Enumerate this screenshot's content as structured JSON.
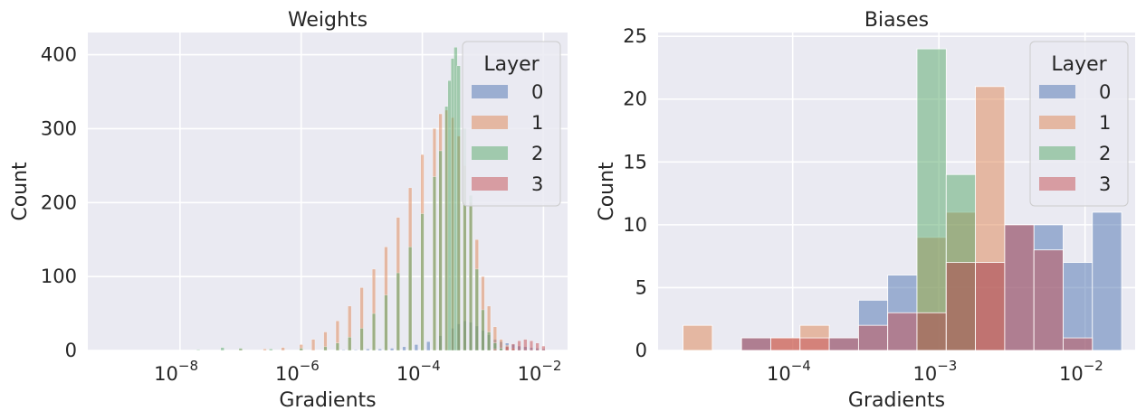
{
  "chart_data": [
    {
      "type": "bar",
      "subtype": "histogram",
      "title": "Weights",
      "xlabel": "Gradients",
      "ylabel": "Count",
      "xscale": "log",
      "xlim": [
        3e-10,
        0.025
      ],
      "ylim": [
        0,
        430
      ],
      "xticks": [
        {
          "value": 1e-08,
          "base": "10",
          "exp": "−8"
        },
        {
          "value": 1e-06,
          "base": "10",
          "exp": "−6"
        },
        {
          "value": 0.0001,
          "base": "10",
          "exp": "−4"
        },
        {
          "value": 0.01,
          "base": "10",
          "exp": "−2"
        }
      ],
      "yticks": [
        0,
        100,
        200,
        300,
        400
      ],
      "grid": true,
      "legend": {
        "title": "Layer",
        "placement": "top-right"
      },
      "bin_edges_log10": [
        -8.7,
        -2.0
      ],
      "series": [
        {
          "name": "0",
          "color": "#4c72b0",
          "points": [
            [
              -5.3,
              1
            ],
            [
              -5.1,
              1
            ],
            [
              -4.9,
              2
            ],
            [
              -4.7,
              2
            ],
            [
              -4.5,
              3
            ],
            [
              -4.3,
              5
            ],
            [
              -4.1,
              8
            ],
            [
              -3.9,
              12
            ],
            [
              -3.7,
              20
            ],
            [
              -3.5,
              30
            ],
            [
              -3.4,
              36
            ],
            [
              -3.3,
              40
            ],
            [
              -3.2,
              38
            ],
            [
              -3.1,
              33
            ],
            [
              -3.0,
              27
            ],
            [
              -2.9,
              21
            ],
            [
              -2.8,
              15
            ],
            [
              -2.7,
              12
            ],
            [
              -2.6,
              10
            ],
            [
              -2.5,
              8
            ],
            [
              -2.4,
              6
            ],
            [
              -2.3,
              5
            ],
            [
              -2.2,
              4
            ],
            [
              -2.1,
              3
            ],
            [
              -2.0,
              2
            ]
          ]
        },
        {
          "name": "1",
          "color": "#dd8452",
          "points": [
            [
              -7.0,
              2
            ],
            [
              -6.6,
              2
            ],
            [
              -6.3,
              4
            ],
            [
              -6.0,
              8
            ],
            [
              -5.8,
              15
            ],
            [
              -5.6,
              25
            ],
            [
              -5.4,
              40
            ],
            [
              -5.2,
              60
            ],
            [
              -5.0,
              85
            ],
            [
              -4.8,
              110
            ],
            [
              -4.6,
              140
            ],
            [
              -4.4,
              180
            ],
            [
              -4.2,
              220
            ],
            [
              -4.0,
              265
            ],
            [
              -3.8,
              300
            ],
            [
              -3.7,
              320
            ],
            [
              -3.6,
              325
            ],
            [
              -3.5,
              315
            ],
            [
              -3.4,
              290
            ],
            [
              -3.3,
              250
            ],
            [
              -3.2,
              200
            ],
            [
              -3.1,
              150
            ],
            [
              -3.0,
              100
            ],
            [
              -2.9,
              60
            ],
            [
              -2.8,
              32
            ],
            [
              -2.7,
              15
            ],
            [
              -2.6,
              7
            ],
            [
              -2.5,
              3
            ]
          ]
        },
        {
          "name": "2",
          "color": "#55a868",
          "points": [
            [
              -7.7,
              1
            ],
            [
              -7.3,
              4
            ],
            [
              -7.0,
              3
            ],
            [
              -6.5,
              2
            ],
            [
              -6.0,
              3
            ],
            [
              -5.6,
              5
            ],
            [
              -5.4,
              10
            ],
            [
              -5.2,
              18
            ],
            [
              -5.0,
              30
            ],
            [
              -4.8,
              50
            ],
            [
              -4.6,
              75
            ],
            [
              -4.4,
              105
            ],
            [
              -4.2,
              140
            ],
            [
              -4.0,
              185
            ],
            [
              -3.8,
              235
            ],
            [
              -3.7,
              270
            ],
            [
              -3.6,
              330
            ],
            [
              -3.55,
              365
            ],
            [
              -3.5,
              395
            ],
            [
              -3.45,
              410
            ],
            [
              -3.4,
              385
            ],
            [
              -3.3,
              300
            ],
            [
              -3.2,
              210
            ],
            [
              -3.1,
              110
            ],
            [
              -3.0,
              55
            ],
            [
              -2.9,
              25
            ],
            [
              -2.8,
              10
            ],
            [
              -2.7,
              3
            ]
          ]
        },
        {
          "name": "3",
          "color": "#c44e52",
          "points": [
            [
              -2.8,
              2
            ],
            [
              -2.6,
              5
            ],
            [
              -2.5,
              9
            ],
            [
              -2.4,
              13
            ],
            [
              -2.3,
              15
            ],
            [
              -2.2,
              13
            ],
            [
              -2.1,
              10
            ],
            [
              -2.0,
              6
            ]
          ]
        }
      ]
    },
    {
      "type": "bar",
      "subtype": "histogram",
      "title": "Biases",
      "xlabel": "Gradients",
      "ylabel": "Count",
      "xscale": "log",
      "xlim": [
        1.2e-05,
        0.022
      ],
      "ylim": [
        0,
        25.3
      ],
      "xticks": [
        {
          "value": 0.0001,
          "base": "10",
          "exp": "−4"
        },
        {
          "value": 0.001,
          "base": "10",
          "exp": "−3"
        },
        {
          "value": 0.01,
          "base": "10",
          "exp": "−2"
        }
      ],
      "yticks": [
        0,
        5,
        10,
        15,
        20,
        25
      ],
      "grid": true,
      "legend": {
        "title": "Layer",
        "placement": "top-right"
      },
      "bin_edges_log10": [
        -4.75,
        -1.75
      ],
      "series": [
        {
          "name": "0",
          "color": "#4c72b0",
          "counts": [
            0,
            0,
            1,
            0,
            0,
            1,
            4,
            6,
            3,
            7,
            7,
            10,
            10,
            7,
            11
          ]
        },
        {
          "name": "1",
          "color": "#dd8452",
          "counts": [
            2,
            0,
            0,
            1,
            2,
            0,
            0,
            0,
            9,
            11,
            21,
            0,
            0,
            0,
            0
          ]
        },
        {
          "name": "2",
          "color": "#55a868",
          "counts": [
            0,
            0,
            0,
            0,
            0,
            0,
            0,
            0,
            24,
            14,
            0,
            0,
            0,
            0,
            0
          ]
        },
        {
          "name": "3",
          "color": "#c44e52",
          "counts": [
            0,
            0,
            1,
            1,
            1,
            1,
            2,
            3,
            3,
            7,
            7,
            10,
            8,
            1,
            0
          ]
        }
      ]
    }
  ]
}
